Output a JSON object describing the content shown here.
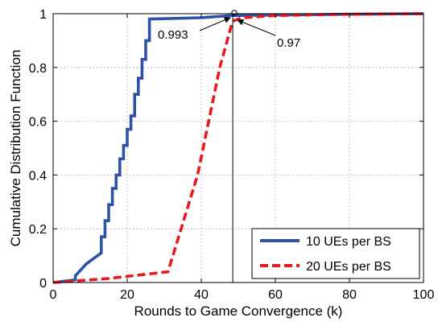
{
  "chart_data": {
    "type": "line",
    "xlabel": "Rounds to Game Convergence (k)",
    "ylabel": "Cumulative Distribution Function",
    "xlim": [
      0,
      100
    ],
    "ylim": [
      0,
      1
    ],
    "xticks": [
      "0",
      "20",
      "40",
      "60",
      "80",
      "100"
    ],
    "yticks": [
      "0",
      "0.2",
      "0.4",
      "0.6",
      "0.8",
      "1"
    ],
    "grid": true,
    "legend_position": "bottom-right",
    "series": [
      {
        "name": "10 UEs per BS",
        "color": "#2f52a8",
        "style": "solid",
        "x": [
          0,
          6,
          6,
          7,
          8,
          9,
          10,
          11,
          12,
          13,
          13,
          14,
          14,
          15,
          15,
          16,
          16,
          17,
          17,
          18,
          18,
          19,
          19,
          20,
          20,
          21,
          21,
          22,
          22,
          23,
          23,
          24,
          24,
          25,
          25,
          26,
          26,
          40,
          48,
          60,
          80,
          100
        ],
        "y": [
          0,
          0.01,
          0.025,
          0.04,
          0.055,
          0.07,
          0.08,
          0.09,
          0.1,
          0.11,
          0.17,
          0.17,
          0.23,
          0.23,
          0.29,
          0.29,
          0.35,
          0.35,
          0.4,
          0.4,
          0.46,
          0.46,
          0.51,
          0.51,
          0.57,
          0.57,
          0.62,
          0.62,
          0.7,
          0.7,
          0.76,
          0.76,
          0.83,
          0.83,
          0.9,
          0.9,
          0.98,
          0.985,
          0.993,
          0.995,
          0.998,
          1.0
        ]
      },
      {
        "name": "20 UEs per BS",
        "color": "#e8191e",
        "style": "dashed",
        "x": [
          0,
          15,
          31,
          39,
          45,
          48,
          48.5,
          49,
          51,
          60,
          80,
          100
        ],
        "y": [
          0,
          0.015,
          0.04,
          0.4,
          0.8,
          0.95,
          0.97,
          0.975,
          0.985,
          0.993,
          0.998,
          1.0
        ]
      }
    ],
    "annotations": [
      {
        "text": "0.993",
        "point": [
          49,
          0.993
        ]
      },
      {
        "text": "0.97",
        "point": [
          48.5,
          0.97
        ]
      }
    ],
    "reference_line_x": 48.5
  }
}
